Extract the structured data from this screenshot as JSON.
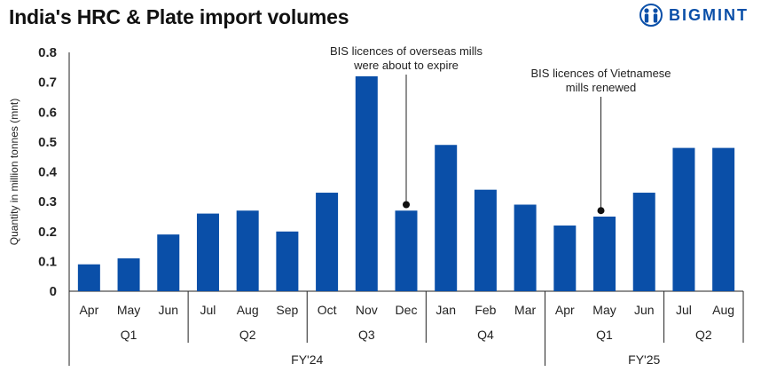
{
  "header": {
    "title": "India's HRC & Plate import volumes",
    "brand_text": "BIGMINT",
    "brand_icon": "bigmint-logo-icon"
  },
  "chart_data": {
    "type": "bar",
    "ylabel": "Quantity in million tonnes (mnt)",
    "ylim": [
      0,
      0.8
    ],
    "yticks": [
      "0",
      "0.1",
      "0.2",
      "0.3",
      "0.4",
      "0.5",
      "0.6",
      "0.7",
      "0.8"
    ],
    "grid": false,
    "bar_color": "#0a4fa8",
    "categories": [
      "Apr",
      "May",
      "Jun",
      "Jul",
      "Aug",
      "Sep",
      "Oct",
      "Nov",
      "Dec",
      "Jan",
      "Feb",
      "Mar",
      "Apr",
      "May",
      "Jun",
      "Jul",
      "Aug"
    ],
    "values": [
      0.09,
      0.11,
      0.19,
      0.26,
      0.27,
      0.2,
      0.33,
      0.72,
      0.27,
      0.49,
      0.34,
      0.29,
      0.22,
      0.25,
      0.33,
      0.48,
      0.48
    ],
    "quarters": [
      {
        "label": "Q1",
        "span": 3
      },
      {
        "label": "Q2",
        "span": 3
      },
      {
        "label": "Q3",
        "span": 3
      },
      {
        "label": "Q4",
        "span": 3
      },
      {
        "label": "Q1",
        "span": 3
      },
      {
        "label": "Q2",
        "span": 2
      }
    ],
    "fiscal_years": [
      {
        "label": "FY'24",
        "span": 12
      },
      {
        "label": "FY'25",
        "span": 5
      }
    ],
    "annotations": [
      {
        "lines": [
          "BIS licences of overseas mills",
          "were about to expire"
        ],
        "category_index": 8,
        "value": 0.29
      },
      {
        "lines": [
          "BIS licences of Vietnamese",
          "mills renewed"
        ],
        "category_index": 13,
        "value": 0.27
      }
    ]
  }
}
